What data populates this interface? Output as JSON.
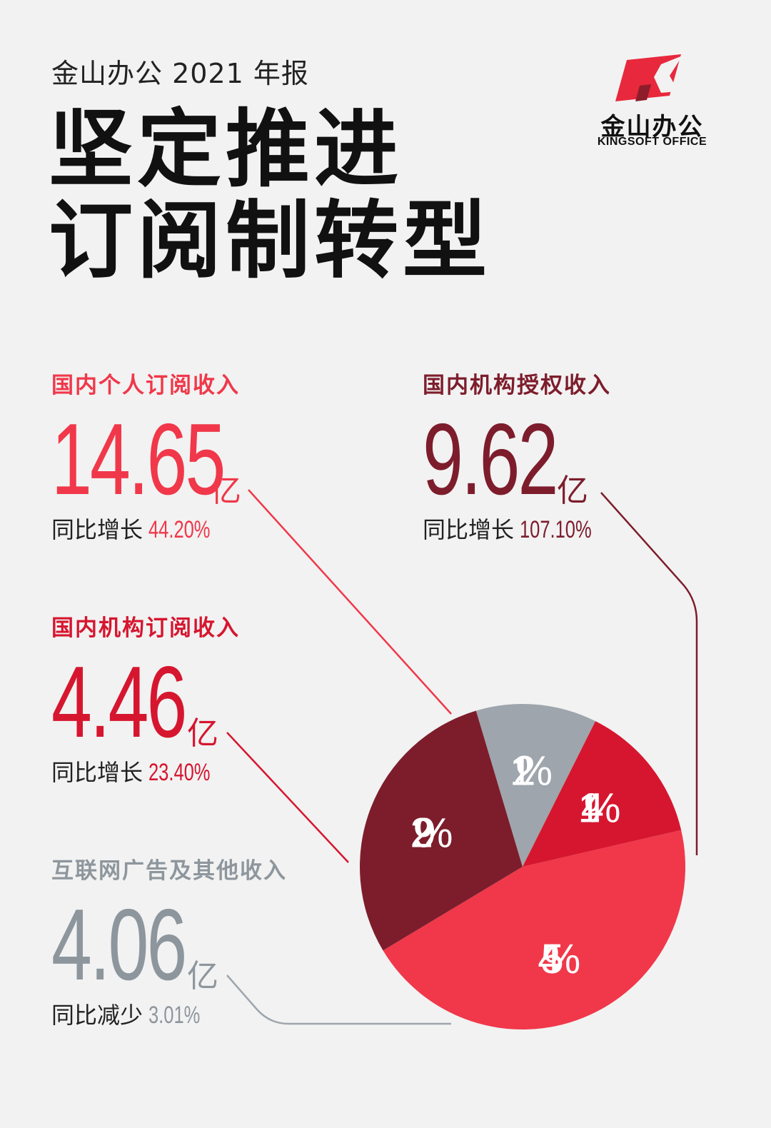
{
  "header": {
    "subtitle": "金山办公 2021 年报",
    "title_line1": "坚定推进",
    "title_line2": "订阅制转型"
  },
  "logo": {
    "cn": "金山办公",
    "en": "KINGSOFT OFFICE",
    "colors": [
      "#e8283c",
      "#8c1d2b"
    ]
  },
  "blocks": [
    {
      "label": "国内个人订阅收入",
      "value": "14.65",
      "unit": "亿",
      "change_label": "同比增长",
      "change_value": "44.20%",
      "color": "#f0384a"
    },
    {
      "label": "国内机构授权收入",
      "value": "9.62",
      "unit": "亿",
      "change_label": "同比增长",
      "change_value": "107.10%",
      "color": "#7d1d2c"
    },
    {
      "label": "国内机构订阅收入",
      "value": "4.46",
      "unit": "亿",
      "change_label": "同比增长",
      "change_value": "23.40%",
      "color": "#d6162f"
    },
    {
      "label": "互联网广告及其他收入",
      "value": "4.06",
      "unit": "亿",
      "change_label": "同比减少",
      "change_value": "3.01%",
      "color": "#8e969d"
    }
  ],
  "chart_data": {
    "type": "pie",
    "slices": [
      {
        "label": "国内个人订阅收入",
        "value": 45,
        "display": "45%",
        "color": "#f0384a"
      },
      {
        "label": "国内机构授权收入",
        "value": 29,
        "display": "29%",
        "color": "#7d1d2c"
      },
      {
        "label": "互联网广告及其他收入",
        "value": 12,
        "display": "12%",
        "color": "#9ea5ac"
      },
      {
        "label": "国内机构订阅收入",
        "value": 14,
        "display": "14%",
        "color": "#d6162f"
      }
    ]
  }
}
